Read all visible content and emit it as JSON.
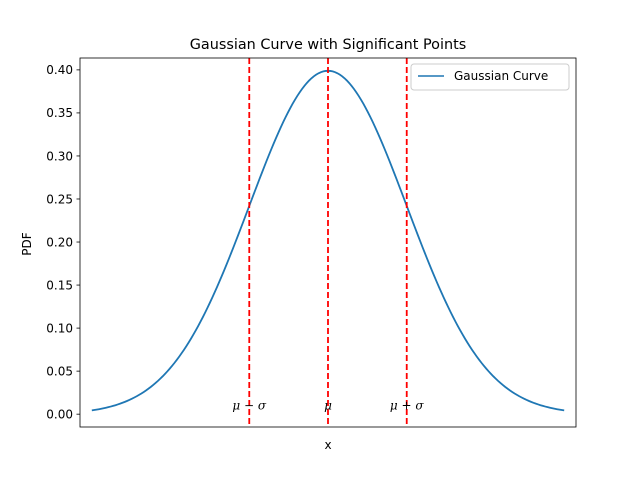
{
  "chart_data": {
    "type": "line",
    "title": "Gaussian Curve with Significant Points",
    "xlabel": "x",
    "ylabel": "PDF",
    "xlim": [
      -3.15,
      3.15
    ],
    "ylim": [
      -0.0149,
      0.4138
    ],
    "yticks": [
      "0.00",
      "0.05",
      "0.10",
      "0.15",
      "0.20",
      "0.25",
      "0.30",
      "0.35",
      "0.40"
    ],
    "xticks": [],
    "grid": false,
    "legend_position": "top-right",
    "series": [
      {
        "name": "Gaussian Curve",
        "color": "#1f77b4",
        "function": "standard normal pdf",
        "mu": 0,
        "sigma": 1,
        "x_range": [
          -3,
          3
        ]
      }
    ],
    "vlines": [
      {
        "x": -1,
        "color": "#ff0000",
        "style": "dashed"
      },
      {
        "x": 0,
        "color": "#ff0000",
        "style": "dashed"
      },
      {
        "x": 1,
        "color": "#ff0000",
        "style": "dashed"
      }
    ],
    "annotations": [
      {
        "x": -1,
        "y": 0.01,
        "text": "μ − σ"
      },
      {
        "x": 0,
        "y": 0.01,
        "text": "μ"
      },
      {
        "x": 1,
        "y": 0.01,
        "text": "μ + σ"
      }
    ]
  }
}
